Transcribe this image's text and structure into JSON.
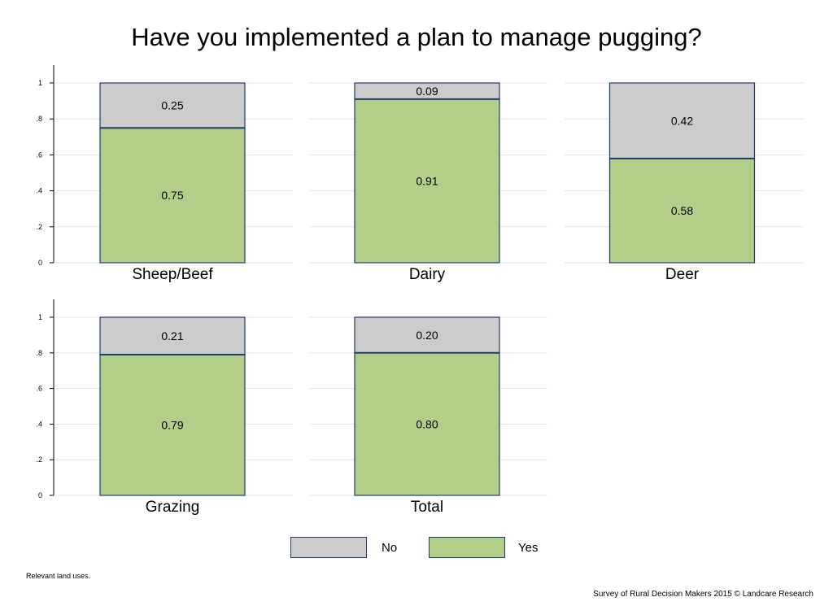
{
  "chart_data": {
    "type": "bar",
    "stacked": true,
    "title": "Have you implemented a plan to manage pugging?",
    "series": [
      {
        "name": "No",
        "color": "#cccccc"
      },
      {
        "name": "Yes",
        "color": "#b2cf8a"
      }
    ],
    "y_ticks": [
      "0",
      ".2",
      ".4",
      ".6",
      ".8",
      "1"
    ],
    "ylim": [
      0,
      1
    ],
    "grid": true,
    "legend_position": "bottom-center",
    "panels": [
      {
        "label": "Sheep/Beef",
        "yes": 0.75,
        "no": 0.25,
        "yes_label": "0.75",
        "no_label": "0.25"
      },
      {
        "label": "Dairy",
        "yes": 0.91,
        "no": 0.09,
        "yes_label": "0.91",
        "no_label": "0.09"
      },
      {
        "label": "Deer",
        "yes": 0.58,
        "no": 0.42,
        "yes_label": "0.58",
        "no_label": "0.42"
      },
      {
        "label": "Grazing",
        "yes": 0.79,
        "no": 0.21,
        "yes_label": "0.79",
        "no_label": "0.21"
      },
      {
        "label": "Total",
        "yes": 0.8,
        "no": 0.2,
        "yes_label": "0.80",
        "no_label": "0.20"
      }
    ]
  },
  "legend": {
    "no_label": "No",
    "yes_label": "Yes",
    "no_color": "#cccccc",
    "yes_color": "#b2cf8a"
  },
  "footnote": "Relevant land uses.",
  "credit": "Survey of Rural Decision Makers 2015 © Landcare Research"
}
